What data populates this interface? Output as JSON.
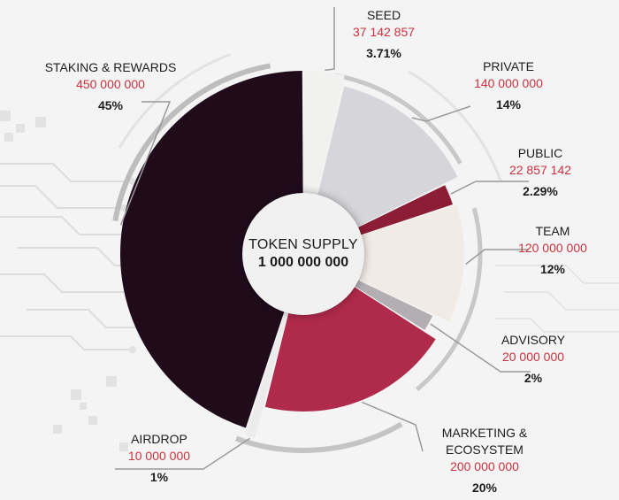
{
  "center": {
    "title": "TOKEN SUPPLY",
    "value": "1 000 000 000"
  },
  "chart_data": {
    "type": "pie",
    "title": "TOKEN SUPPLY",
    "total": 1000000000,
    "slices": [
      {
        "name": "SEED",
        "amount_text": "37 142 857",
        "value": 37142857,
        "percent": 3.71,
        "percent_text": "3.71%",
        "color": "#f1f1f0"
      },
      {
        "name": "PRIVATE",
        "amount_text": "140 000 000",
        "value": 140000000,
        "percent": 14,
        "percent_text": "14%",
        "color": "#d5d5da"
      },
      {
        "name": "PUBLIC",
        "amount_text": "22 857 142",
        "value": 22857142,
        "percent": 2.29,
        "percent_text": "2.29%",
        "color": "#8b1d35"
      },
      {
        "name": "TEAM",
        "amount_text": "120 000 000",
        "value": 120000000,
        "percent": 12,
        "percent_text": "12%",
        "color": "#f1ebe6"
      },
      {
        "name": "ADVISORY",
        "amount_text": "20 000 000",
        "value": 20000000,
        "percent": 2,
        "percent_text": "2%",
        "color": "#b2aeb2"
      },
      {
        "name": "MARKETING &\nECOSYSTEM",
        "amount_text": "200 000 000",
        "value": 200000000,
        "percent": 20,
        "percent_text": "20%",
        "color": "#b02a4b"
      },
      {
        "name": "AIRDROP",
        "amount_text": "10 000 000",
        "value": 10000000,
        "percent": 1,
        "percent_text": "1%",
        "color": "#ececec"
      },
      {
        "name": "STAKING & REWARDS",
        "amount_text": "450 000 000",
        "value": 450000000,
        "percent": 45,
        "percent_text": "45%",
        "color": "#200b1b"
      }
    ]
  }
}
